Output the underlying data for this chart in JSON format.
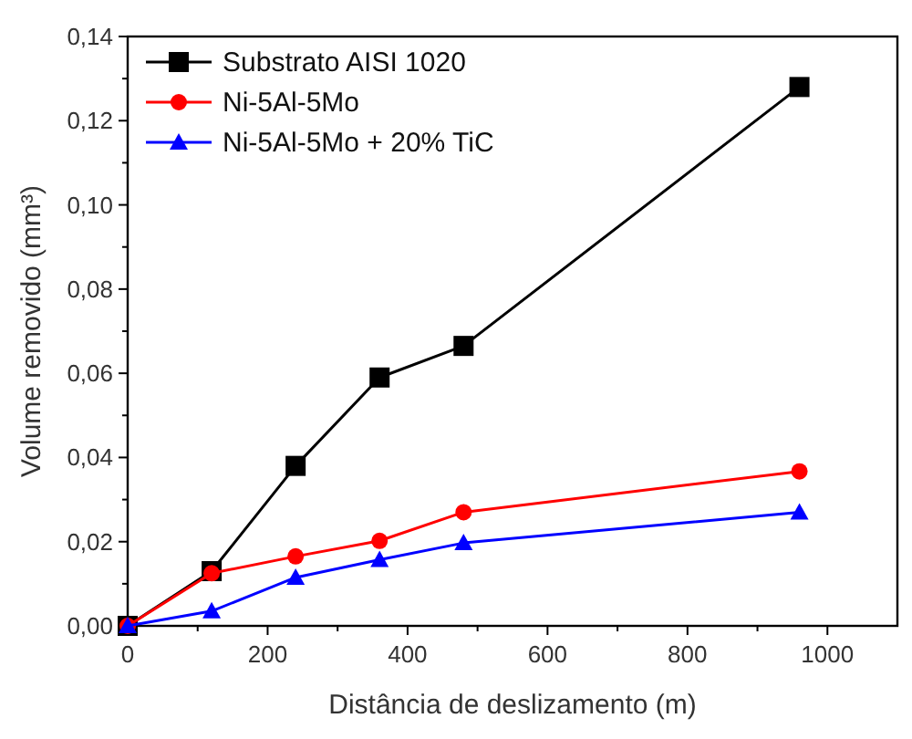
{
  "chart_data": {
    "type": "line",
    "xlabel": "Distância de deslizamento (m)",
    "ylabel": "Volume removido (mm³)",
    "x": [
      0,
      120,
      240,
      360,
      480,
      960
    ],
    "series": [
      {
        "name": "Substrato AISI 1020",
        "color": "#000000",
        "marker": "square",
        "values": [
          0,
          0.013,
          0.038,
          0.059,
          0.0665,
          0.128
        ]
      },
      {
        "name": "Ni-5Al-5Mo",
        "color": "#ff0000",
        "marker": "circle",
        "values": [
          0,
          0.0125,
          0.0165,
          0.0202,
          0.027,
          0.0367
        ]
      },
      {
        "name": "Ni-5Al-5Mo + 20% TiC",
        "color": "#0000ff",
        "marker": "triangle",
        "values": [
          0,
          0.0035,
          0.0115,
          0.0157,
          0.0197,
          0.027
        ]
      }
    ],
    "xlim": [
      0,
      1100
    ],
    "xticks": [
      0,
      {
        "value": 100,
        "label": null
      },
      200,
      {
        "value": 300,
        "label": null
      },
      400,
      {
        "value": 500,
        "label": null
      },
      600,
      {
        "value": 700,
        "label": null
      },
      800,
      {
        "value": 900,
        "label": null
      },
      1000
    ],
    "ylim": [
      0,
      0.14
    ],
    "yticks": [
      {
        "value": 0,
        "label": "0,00"
      },
      {
        "value": 0.01,
        "label": null
      },
      {
        "value": 0.02,
        "label": "0,02"
      },
      {
        "value": 0.03,
        "label": null
      },
      {
        "value": 0.04,
        "label": "0,04"
      },
      {
        "value": 0.05,
        "label": null
      },
      {
        "value": 0.06,
        "label": "0,06"
      },
      {
        "value": 0.07,
        "label": null
      },
      {
        "value": 0.08,
        "label": "0,08"
      },
      {
        "value": 0.09,
        "label": null
      },
      {
        "value": 0.1,
        "label": "0,10"
      },
      {
        "value": 0.11,
        "label": null
      },
      {
        "value": 0.12,
        "label": "0,12"
      },
      {
        "value": 0.13,
        "label": null
      },
      {
        "value": 0.14,
        "label": "0,14"
      }
    ],
    "legend": "top left",
    "grid": false,
    "line_style": "solid"
  }
}
